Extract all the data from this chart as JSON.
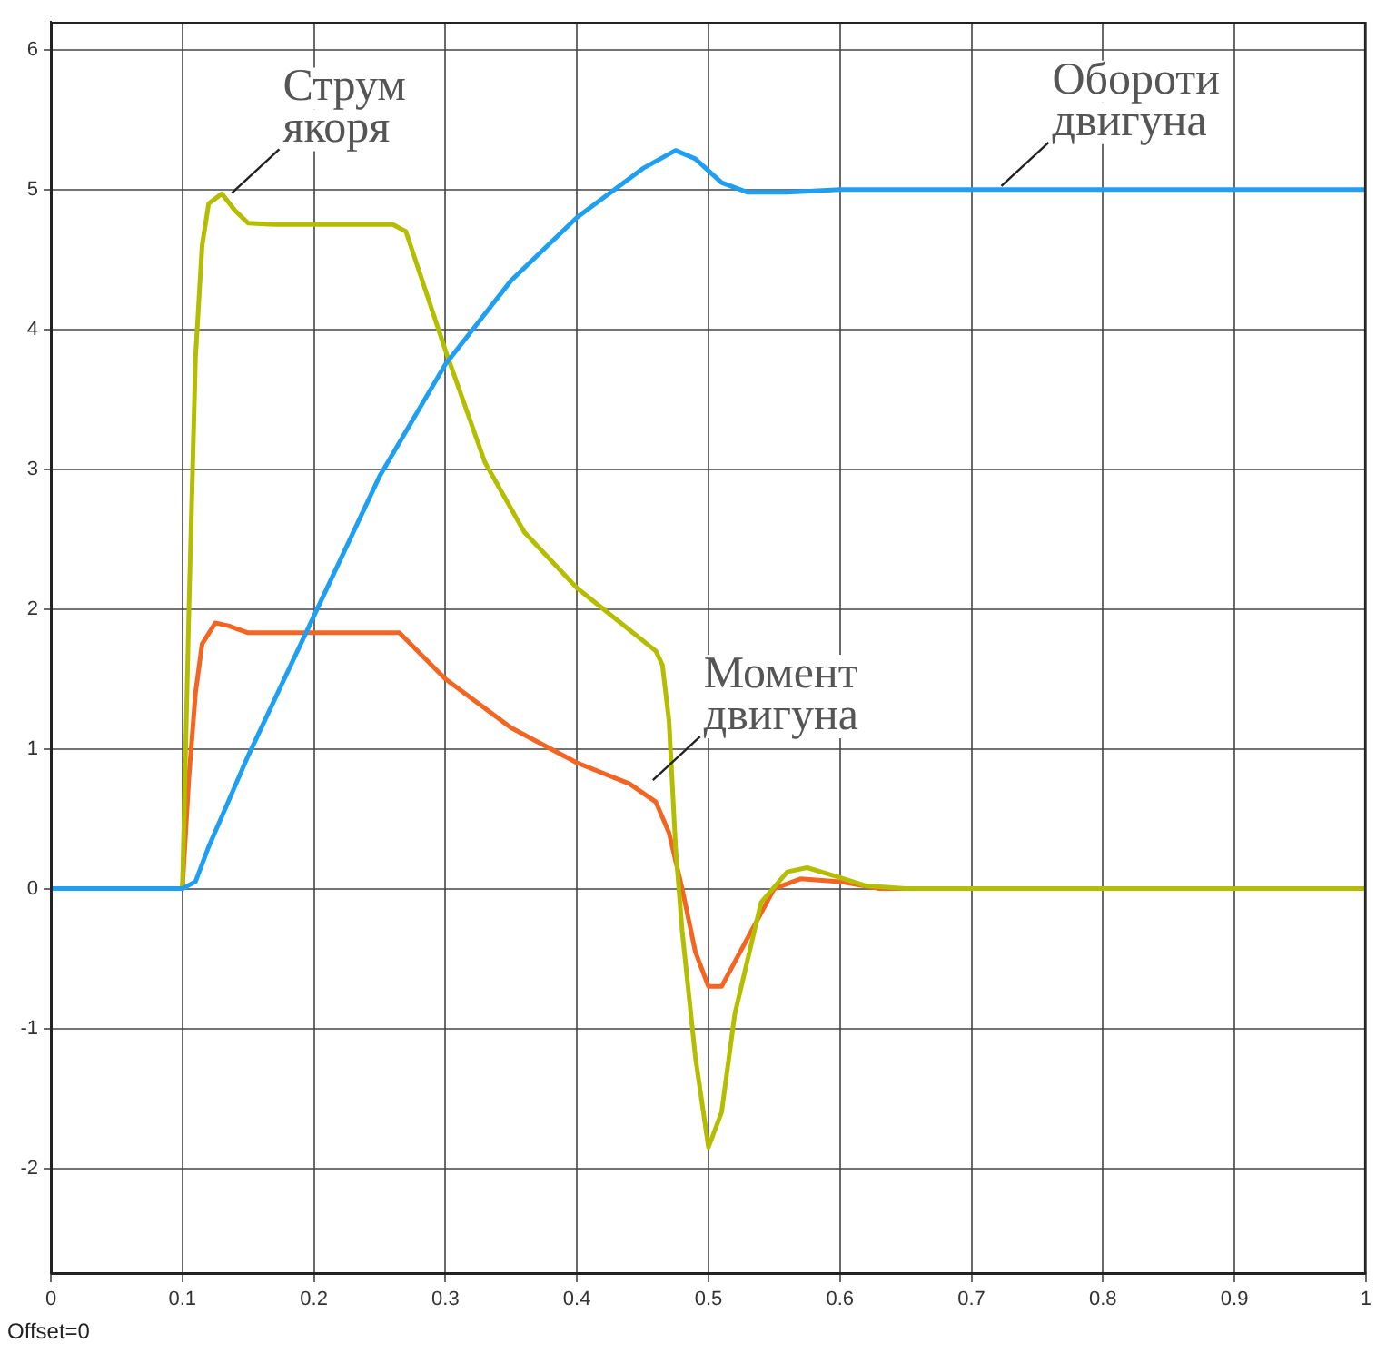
{
  "chart_data": {
    "type": "line",
    "xlim": [
      0,
      1
    ],
    "ylim": [
      -2.75,
      6.2
    ],
    "xticks": [
      0,
      0.1,
      0.2,
      0.3,
      0.4,
      0.5,
      0.6,
      0.7,
      0.8,
      0.9,
      1
    ],
    "yticks": [
      -2,
      -1,
      0,
      1,
      2,
      3,
      4,
      5,
      6
    ],
    "grid": true,
    "legend": false,
    "marker": "none",
    "line_style": "solid",
    "series": [
      {
        "color": "#1e9ff2",
        "x": [
          0,
          0.1,
          0.11,
          0.12,
          0.15,
          0.2,
          0.25,
          0.3,
          0.35,
          0.4,
          0.45,
          0.475,
          0.49,
          0.51,
          0.53,
          0.56,
          0.6,
          1
        ],
        "values": [
          0,
          0,
          0.05,
          0.3,
          0.95,
          1.95,
          2.95,
          3.75,
          4.35,
          4.8,
          5.15,
          5.28,
          5.22,
          5.05,
          4.98,
          4.98,
          5,
          5
        ]
      },
      {
        "color": "#b5bd00",
        "x": [
          0,
          0.1,
          0.105,
          0.11,
          0.115,
          0.12,
          0.13,
          0.14,
          0.15,
          0.17,
          0.26,
          0.27,
          0.3,
          0.33,
          0.36,
          0.4,
          0.44,
          0.46,
          0.465,
          0.47,
          0.475,
          0.48,
          0.49,
          0.5,
          0.51,
          0.52,
          0.54,
          0.56,
          0.575,
          0.6,
          0.62,
          0.65,
          1
        ],
        "values": [
          0,
          0,
          2,
          3.8,
          4.6,
          4.9,
          4.97,
          4.85,
          4.76,
          4.75,
          4.75,
          4.7,
          3.85,
          3.05,
          2.55,
          2.15,
          1.85,
          1.7,
          1.6,
          1.2,
          0.3,
          -0.3,
          -1.2,
          -1.85,
          -1.6,
          -0.9,
          -0.1,
          0.12,
          0.15,
          0.08,
          0.02,
          0,
          0
        ]
      },
      {
        "color": "#f26522",
        "x": [
          0,
          0.1,
          0.105,
          0.11,
          0.115,
          0.125,
          0.135,
          0.15,
          0.265,
          0.3,
          0.35,
          0.4,
          0.44,
          0.46,
          0.47,
          0.48,
          0.49,
          0.5,
          0.51,
          0.53,
          0.55,
          0.57,
          0.6,
          0.63,
          1
        ],
        "values": [
          0,
          0,
          0.8,
          1.4,
          1.75,
          1.9,
          1.88,
          1.83,
          1.83,
          1.5,
          1.15,
          0.9,
          0.75,
          0.62,
          0.4,
          0,
          -0.45,
          -0.7,
          -0.7,
          -0.35,
          0,
          0.07,
          0.05,
          0,
          0
        ]
      }
    ],
    "annotations": [
      {
        "text": "Струм\nякоря",
        "x": 0.135,
        "y": 4.95
      },
      {
        "text": "Обороти\nдвигуна",
        "x": 0.72,
        "y": 5
      },
      {
        "text": "Момент\nдвигуна",
        "x": 0.455,
        "y": 0.75
      },
      "Offset=0"
    ]
  }
}
